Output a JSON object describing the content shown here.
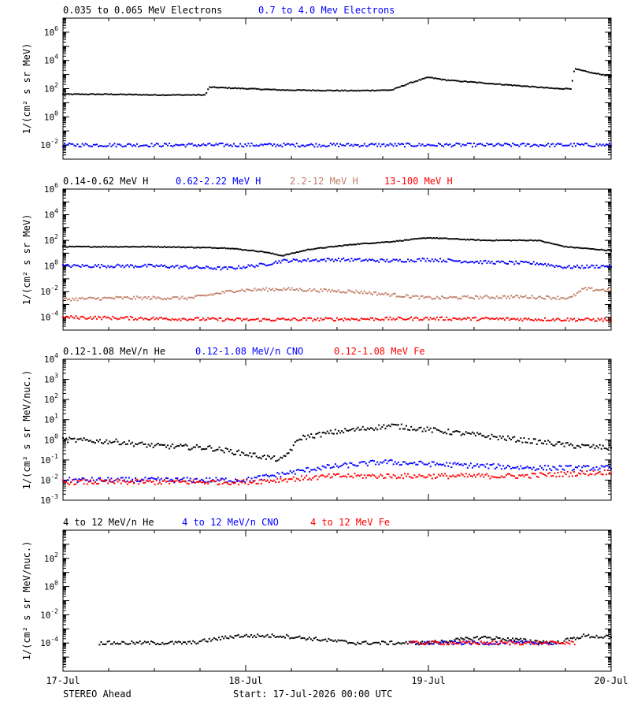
{
  "footer": {
    "spacecraft": "STEREO Ahead",
    "start": "Start: 17-Jul-2026 00:00 UTC"
  },
  "colors": {
    "black": "#000000",
    "blue": "#0000ff",
    "tan": "#c08068",
    "red": "#ff0000"
  },
  "x_axis": {
    "tick_labels": [
      "17-Jul",
      "18-Jul",
      "19-Jul",
      "20-Jul"
    ],
    "range_days": [
      0,
      3
    ]
  },
  "chart_data": [
    {
      "type": "scatter",
      "ylabel": "1/(cm² s sr MeV)",
      "ylim_log10": [
        -3,
        7
      ],
      "ytick_exponents": [
        -2,
        0,
        2,
        4,
        6
      ],
      "series": [
        {
          "name": "0.035 to 0.065 MeV Electrons",
          "color": "black",
          "points": [
            [
              0,
              1.6
            ],
            [
              0.25,
              1.6
            ],
            [
              0.5,
              1.55
            ],
            [
              0.78,
              1.55
            ],
            [
              0.8,
              2.1
            ],
            [
              1.2,
              1.9
            ],
            [
              1.6,
              1.85
            ],
            [
              1.8,
              1.9
            ],
            [
              1.9,
              2.4
            ],
            [
              2.0,
              2.8
            ],
            [
              2.1,
              2.6
            ],
            [
              2.5,
              2.2
            ],
            [
              2.7,
              2.0
            ],
            [
              2.78,
              2.0
            ],
            [
              2.8,
              3.4
            ],
            [
              2.9,
              3.1
            ],
            [
              3.0,
              2.9
            ]
          ]
        },
        {
          "name": "0.7 to 4.0 Mev Electrons",
          "color": "blue",
          "points": [
            [
              0,
              -2
            ],
            [
              0.5,
              -2
            ],
            [
              1.0,
              -2
            ],
            [
              1.5,
              -2
            ],
            [
              2.0,
              -2
            ],
            [
              2.5,
              -2
            ],
            [
              3.0,
              -2
            ]
          ]
        }
      ]
    },
    {
      "type": "scatter",
      "ylabel": "1/(cm² s sr MeV)",
      "ylim_log10": [
        -5,
        6
      ],
      "ytick_exponents": [
        -4,
        -2,
        0,
        2,
        4,
        6
      ],
      "series": [
        {
          "name": "0.14-0.62 MeV H",
          "color": "black",
          "points": [
            [
              0,
              1.5
            ],
            [
              0.5,
              1.5
            ],
            [
              0.9,
              1.4
            ],
            [
              1.1,
              1.1
            ],
            [
              1.2,
              0.8
            ],
            [
              1.35,
              1.3
            ],
            [
              1.6,
              1.7
            ],
            [
              1.8,
              1.9
            ],
            [
              2.0,
              2.2
            ],
            [
              2.3,
              2.0
            ],
            [
              2.6,
              2.0
            ],
            [
              2.75,
              1.5
            ],
            [
              3.0,
              1.2
            ]
          ]
        },
        {
          "name": "0.62-2.22 MeV H",
          "color": "blue",
          "points": [
            [
              0,
              0
            ],
            [
              0.5,
              0
            ],
            [
              0.9,
              -0.2
            ],
            [
              1.1,
              0.1
            ],
            [
              1.2,
              0.4
            ],
            [
              1.5,
              0.5
            ],
            [
              1.8,
              0.4
            ],
            [
              2.0,
              0.5
            ],
            [
              2.3,
              0.3
            ],
            [
              2.6,
              0.2
            ],
            [
              2.75,
              -0.1
            ],
            [
              3.0,
              0
            ]
          ]
        },
        {
          "name": "2.2-12 MeV H",
          "color": "tan",
          "points": [
            [
              0,
              -2.6
            ],
            [
              0.3,
              -2.5
            ],
            [
              0.7,
              -2.5
            ],
            [
              0.95,
              -1.9
            ],
            [
              1.2,
              -1.8
            ],
            [
              1.6,
              -2.0
            ],
            [
              2.0,
              -2.5
            ],
            [
              2.5,
              -2.4
            ],
            [
              2.78,
              -2.5
            ],
            [
              2.85,
              -1.8
            ],
            [
              3.0,
              -1.9
            ]
          ]
        },
        {
          "name": "13-100 MeV H",
          "color": "red",
          "points": [
            [
              0,
              -4
            ],
            [
              1.0,
              -4.2
            ],
            [
              2.0,
              -4.1
            ],
            [
              3.0,
              -4.2
            ]
          ]
        }
      ]
    },
    {
      "type": "scatter",
      "ylabel": "1/(cm² s sr MeV/nuc.)",
      "ylim_log10": [
        -3,
        4
      ],
      "ytick_exponents": [
        -3,
        -2,
        -1,
        0,
        1,
        2,
        3,
        4
      ],
      "series": [
        {
          "name": "0.12-1.08 MeV/n He",
          "color": "black",
          "points": [
            [
              0,
              0
            ],
            [
              0.3,
              -0.1
            ],
            [
              0.5,
              -0.3
            ],
            [
              0.8,
              -0.4
            ],
            [
              1.0,
              -0.7
            ],
            [
              1.2,
              -1.0
            ],
            [
              1.3,
              0.1
            ],
            [
              1.5,
              0.4
            ],
            [
              1.8,
              0.7
            ],
            [
              2.0,
              0.5
            ],
            [
              2.3,
              0.2
            ],
            [
              2.6,
              -0.1
            ],
            [
              2.8,
              -0.3
            ],
            [
              3.0,
              -0.4
            ]
          ]
        },
        {
          "name": "0.12-1.08 MeV/n CNO",
          "color": "blue",
          "points": [
            [
              0,
              -2
            ],
            [
              0.5,
              -2
            ],
            [
              1.0,
              -2
            ],
            [
              1.4,
              -1.4
            ],
            [
              1.75,
              -1.1
            ],
            [
              2.0,
              -1.2
            ],
            [
              2.3,
              -1.3
            ],
            [
              2.6,
              -1.4
            ],
            [
              3.0,
              -1.4
            ]
          ]
        },
        {
          "name": "0.12-1.08 MeV Fe",
          "color": "red",
          "points": [
            [
              0,
              -2.1
            ],
            [
              0.5,
              -2.1
            ],
            [
              1.0,
              -2.1
            ],
            [
              1.5,
              -1.8
            ],
            [
              2.0,
              -1.8
            ],
            [
              2.5,
              -1.8
            ],
            [
              3.0,
              -1.6
            ]
          ]
        }
      ]
    },
    {
      "type": "scatter",
      "ylabel": "1/(cm² s sr MeV/nuc.)",
      "ylim_log10": [
        -6,
        4
      ],
      "ytick_exponents": [
        -4,
        -2,
        0,
        2
      ],
      "series": [
        {
          "name": "4 to 12 MeV/n He",
          "color": "black",
          "points": [
            [
              0.2,
              -4
            ],
            [
              0.7,
              -4
            ],
            [
              0.95,
              -3.5
            ],
            [
              1.2,
              -3.5
            ],
            [
              1.6,
              -4
            ],
            [
              2.0,
              -4
            ],
            [
              2.3,
              -3.6
            ],
            [
              2.7,
              -4
            ],
            [
              2.85,
              -3.5
            ],
            [
              3.0,
              -3.6
            ]
          ]
        },
        {
          "name": "4 to 12 MeV/n CNO",
          "color": "blue",
          "points": [
            [
              1.9,
              -4
            ],
            [
              2.3,
              -4
            ],
            [
              2.7,
              -4
            ]
          ]
        },
        {
          "name": "4 to 12 MeV Fe",
          "color": "red",
          "points": [
            [
              1.9,
              -4
            ],
            [
              2.4,
              -4
            ],
            [
              2.85,
              -4
            ],
            [
              2.8,
              -5.2
            ]
          ]
        }
      ]
    }
  ]
}
